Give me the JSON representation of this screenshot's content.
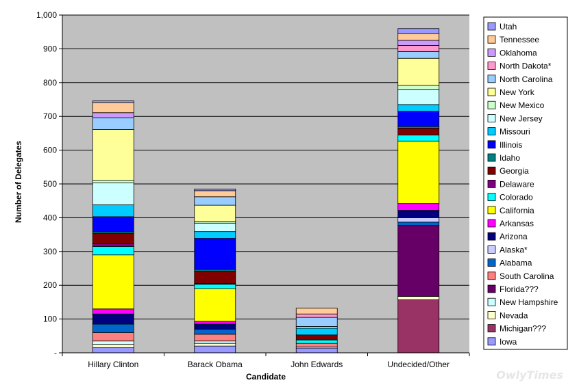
{
  "watermark": "OwlyTimes",
  "chart_data": {
    "type": "bar",
    "stacked": true,
    "xlabel": "Candidate",
    "ylabel": "Number of Delegates",
    "ylim": [
      0,
      1000
    ],
    "yticks": [
      "-",
      "100",
      "200",
      "300",
      "400",
      "500",
      "600",
      "700",
      "800",
      "900",
      "1,000"
    ],
    "ytick_values": [
      0,
      100,
      200,
      300,
      400,
      500,
      600,
      700,
      800,
      900,
      1000
    ],
    "grid": true,
    "legend_position": "right",
    "categories": [
      "Hillary Clinton",
      "Barack Obama",
      "John Edwards",
      "Undecided/Other"
    ],
    "series": [
      {
        "name": "Iowa",
        "color": "#9999ff",
        "values": [
          15,
          20,
          14,
          0
        ]
      },
      {
        "name": "Michigan???",
        "color": "#993366",
        "values": [
          0,
          0,
          0,
          157
        ]
      },
      {
        "name": "Nevada",
        "color": "#ffffcc",
        "values": [
          10,
          8,
          0,
          10
        ]
      },
      {
        "name": "New Hampshire",
        "color": "#ccffff",
        "values": [
          10,
          7,
          4,
          0
        ]
      },
      {
        "name": "Florida???",
        "color": "#660066",
        "values": [
          0,
          0,
          0,
          210
        ]
      },
      {
        "name": "South Carolina",
        "color": "#ff8080",
        "values": [
          25,
          20,
          10,
          0
        ]
      },
      {
        "name": "Alabama",
        "color": "#0066cc",
        "values": [
          25,
          15,
          0,
          10
        ]
      },
      {
        "name": "Alaska*",
        "color": "#ccccff",
        "values": [
          0,
          0,
          0,
          13
        ]
      },
      {
        "name": "Arizona",
        "color": "#000080",
        "values": [
          30,
          15,
          0,
          22
        ]
      },
      {
        "name": "Arkansas",
        "color": "#ff00ff",
        "values": [
          15,
          8,
          0,
          20
        ]
      },
      {
        "name": "California",
        "color": "#ffff00",
        "values": [
          160,
          97,
          0,
          185
        ]
      },
      {
        "name": "Colorado",
        "color": "#00ffff",
        "values": [
          25,
          13,
          10,
          18
        ]
      },
      {
        "name": "Delaware",
        "color": "#800080",
        "values": [
          8,
          2,
          0,
          0
        ]
      },
      {
        "name": "Georgia",
        "color": "#800000",
        "values": [
          30,
          37,
          15,
          20
        ]
      },
      {
        "name": "Idaho",
        "color": "#008080",
        "values": [
          5,
          5,
          0,
          5
        ]
      },
      {
        "name": "Illinois",
        "color": "#0000ff",
        "values": [
          45,
          92,
          0,
          45
        ]
      },
      {
        "name": "Missouri",
        "color": "#00ccff",
        "values": [
          35,
          20,
          20,
          20
        ]
      },
      {
        "name": "New Jersey",
        "color": "#ccffff",
        "values": [
          65,
          25,
          5,
          45
        ]
      },
      {
        "name": "New Mexico",
        "color": "#ccffcc",
        "values": [
          8,
          5,
          0,
          12
        ]
      },
      {
        "name": "New York",
        "color": "#ffff99",
        "values": [
          150,
          48,
          0,
          80
        ]
      },
      {
        "name": "North Carolina",
        "color": "#99ccff",
        "values": [
          35,
          25,
          27,
          20
        ]
      },
      {
        "name": "North Dakota*",
        "color": "#ff99cc",
        "values": [
          0,
          0,
          10,
          18
        ]
      },
      {
        "name": "Oklahoma",
        "color": "#cc99ff",
        "values": [
          15,
          0,
          0,
          15
        ]
      },
      {
        "name": "Tennessee",
        "color": "#ffcc99",
        "values": [
          30,
          18,
          17,
          20
        ]
      },
      {
        "name": "Utah",
        "color": "#9999ff",
        "values": [
          5,
          5,
          0,
          15
        ]
      }
    ]
  }
}
